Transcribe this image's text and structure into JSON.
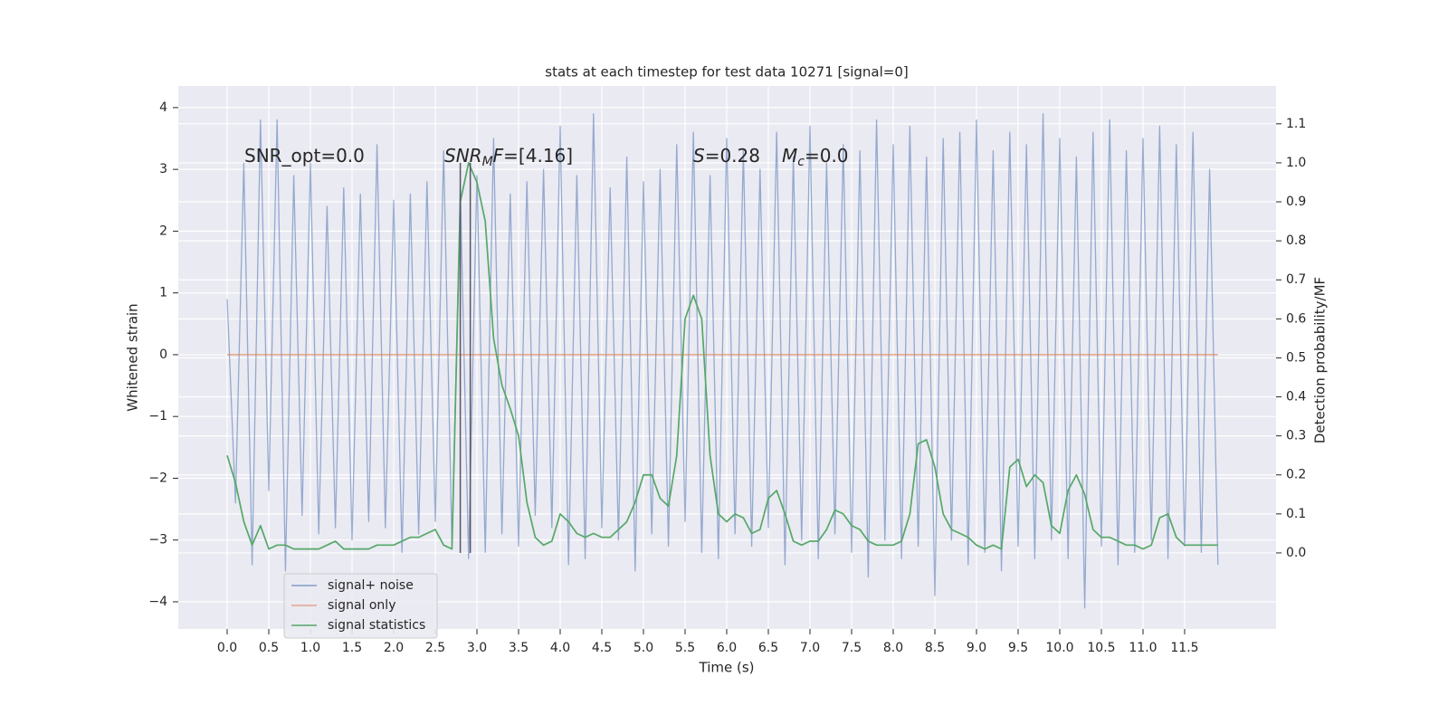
{
  "chart_data": {
    "type": "line",
    "title": "stats at each timestep for test data 10271 [signal=0]",
    "xlabel": "Time (s)",
    "ylabel": "Whitened strain",
    "y2label": "Detection probability/MF",
    "x": [
      0,
      0.1,
      0.2,
      0.3,
      0.4,
      0.5,
      0.6,
      0.7,
      0.8,
      0.9,
      1,
      1.1,
      1.2,
      1.3,
      1.4,
      1.5,
      1.6,
      1.7,
      1.8,
      1.9,
      2,
      2.1,
      2.2,
      2.3,
      2.4,
      2.5,
      2.6,
      2.7,
      2.8,
      2.9,
      3,
      3.1,
      3.2,
      3.3,
      3.4,
      3.5,
      3.6,
      3.7,
      3.8,
      3.9,
      4,
      4.1,
      4.2,
      4.3,
      4.4,
      4.5,
      4.6,
      4.7,
      4.8,
      4.9,
      5,
      5.1,
      5.2,
      5.3,
      5.4,
      5.5,
      5.6,
      5.7,
      5.8,
      5.9,
      6,
      6.1,
      6.2,
      6.3,
      6.4,
      6.5,
      6.6,
      6.7,
      6.8,
      6.9,
      7,
      7.1,
      7.2,
      7.3,
      7.4,
      7.5,
      7.6,
      7.7,
      7.8,
      7.9,
      8,
      8.1,
      8.2,
      8.3,
      8.4,
      8.5,
      8.6,
      8.7,
      8.8,
      8.9,
      9,
      9.1,
      9.2,
      9.3,
      9.4,
      9.5,
      9.6,
      9.7,
      9.8,
      9.9,
      10,
      10.1,
      10.2,
      10.3,
      10.4,
      10.5,
      10.6,
      10.7,
      10.8,
      10.9,
      11,
      11.1,
      11.2,
      11.3,
      11.4,
      11.5,
      11.6,
      11.7,
      11.8,
      11.9
    ],
    "series": [
      {
        "name": "signal+ noise",
        "color": "#4c72b0",
        "values": [
          0.9,
          -2.4,
          3.1,
          -3.4,
          3.8,
          -2.2,
          3.8,
          -3.5,
          2.9,
          -2.6,
          3.1,
          -2.9,
          2.4,
          -2.8,
          2.7,
          -3.0,
          2.6,
          -2.7,
          3.4,
          -2.8,
          2.5,
          -3.2,
          2.6,
          -2.9,
          2.8,
          -2.7,
          3.3,
          -3.1,
          2.7,
          -3.3,
          2.9,
          -3.2,
          3.5,
          -2.9,
          2.6,
          -3.1,
          2.8,
          -2.6,
          3.0,
          -2.8,
          3.7,
          -3.4,
          2.9,
          -3.3,
          3.9,
          -2.8,
          2.7,
          -3.0,
          3.2,
          -3.5,
          2.8,
          -2.9,
          3.0,
          -3.1,
          3.4,
          -2.7,
          3.6,
          -3.2,
          2.9,
          -3.3,
          3.5,
          -2.9,
          3.3,
          -3.1,
          3.0,
          -2.8,
          3.6,
          -3.4,
          3.2,
          -3.0,
          3.7,
          -3.3,
          3.1,
          -2.9,
          3.4,
          -3.2,
          3.3,
          -3.6,
          3.8,
          -3.0,
          3.4,
          -3.3,
          3.7,
          -3.1,
          3.2,
          -3.9,
          3.5,
          -3.0,
          3.6,
          -3.4,
          3.8,
          -3.2,
          3.3,
          -3.5,
          3.6,
          -3.1,
          3.4,
          -3.3,
          3.9,
          -3.0,
          3.5,
          -3.3,
          3.2,
          -4.1,
          3.6,
          -3.1,
          3.8,
          -3.4,
          3.3,
          -3.2,
          3.5,
          -3.0,
          3.7,
          -3.3,
          3.4,
          -3.1,
          3.6,
          -3.2,
          3.0,
          -3.4
        ]
      },
      {
        "name": "signal only",
        "color": "#dd8452",
        "values": [
          0,
          0,
          0,
          0,
          0,
          0,
          0,
          0,
          0,
          0,
          0,
          0,
          0,
          0,
          0,
          0,
          0,
          0,
          0,
          0,
          0,
          0,
          0,
          0,
          0,
          0,
          0,
          0,
          0,
          0,
          0,
          0,
          0,
          0,
          0,
          0,
          0,
          0,
          0,
          0,
          0,
          0,
          0,
          0,
          0,
          0,
          0,
          0,
          0,
          0,
          0,
          0,
          0,
          0,
          0,
          0,
          0,
          0,
          0,
          0,
          0,
          0,
          0,
          0,
          0,
          0,
          0,
          0,
          0,
          0,
          0,
          0,
          0,
          0,
          0,
          0,
          0,
          0,
          0,
          0,
          0,
          0,
          0,
          0,
          0,
          0,
          0,
          0,
          0,
          0,
          0,
          0,
          0,
          0,
          0,
          0,
          0,
          0,
          0,
          0,
          0,
          0,
          0,
          0,
          0,
          0,
          0,
          0,
          0,
          0,
          0,
          0,
          0,
          0,
          0,
          0,
          0,
          0,
          0,
          0
        ]
      },
      {
        "name": "signal statistics",
        "color": "#55a868",
        "axis": "y2",
        "values": [
          0.25,
          0.18,
          0.08,
          0.02,
          0.07,
          0.01,
          0.02,
          0.02,
          0.01,
          0.01,
          0.01,
          0.01,
          0.02,
          0.03,
          0.01,
          0.01,
          0.01,
          0.01,
          0.02,
          0.02,
          0.02,
          0.03,
          0.04,
          0.04,
          0.05,
          0.06,
          0.02,
          0.01,
          0.9,
          1.0,
          0.95,
          0.85,
          0.55,
          0.43,
          0.37,
          0.3,
          0.13,
          0.04,
          0.02,
          0.03,
          0.1,
          0.08,
          0.05,
          0.04,
          0.05,
          0.04,
          0.04,
          0.06,
          0.08,
          0.13,
          0.2,
          0.2,
          0.14,
          0.12,
          0.25,
          0.6,
          0.66,
          0.6,
          0.25,
          0.1,
          0.08,
          0.1,
          0.09,
          0.05,
          0.06,
          0.14,
          0.16,
          0.1,
          0.03,
          0.02,
          0.03,
          0.03,
          0.06,
          0.11,
          0.1,
          0.07,
          0.06,
          0.03,
          0.02,
          0.02,
          0.02,
          0.03,
          0.1,
          0.28,
          0.29,
          0.22,
          0.1,
          0.06,
          0.05,
          0.04,
          0.02,
          0.01,
          0.02,
          0.01,
          0.22,
          0.24,
          0.17,
          0.2,
          0.18,
          0.07,
          0.05,
          0.16,
          0.2,
          0.15,
          0.06,
          0.04,
          0.04,
          0.03,
          0.02,
          0.02,
          0.01,
          0.02,
          0.09,
          0.1,
          0.04,
          0.02,
          0.02,
          0.02,
          0.02,
          0.02
        ]
      }
    ],
    "vlines": [
      2.8,
      2.92
    ],
    "vline_color": "#555566",
    "annotations": [
      {
        "parts": [
          {
            "text": "SNR_opt=0.0",
            "style": "normal"
          }
        ]
      },
      {
        "parts": [
          {
            "text": "SNR",
            "style": "italic"
          },
          {
            "text": "M",
            "style": "sub"
          },
          {
            "text": "F",
            "style": "italic"
          },
          {
            "text": "=[4.16]",
            "style": "normal"
          }
        ]
      },
      {
        "parts": [
          {
            "text": "S",
            "style": "italic"
          },
          {
            "text": "=0.28",
            "style": "normal"
          },
          {
            "text": "M",
            "style": "italic"
          },
          {
            "text": "c",
            "style": "sub"
          },
          {
            "text": "=0.0",
            "style": "normal"
          }
        ]
      }
    ],
    "xlim": [
      -0.587,
      12.598
    ],
    "ylim": [
      -4.44,
      4.35
    ],
    "y2lim": [
      -0.195,
      1.197
    ],
    "xticks": [
      {
        "value": 0,
        "label": "0.0"
      },
      {
        "value": 0.5,
        "label": "0.5"
      },
      {
        "value": 1,
        "label": "1.0"
      },
      {
        "value": 1.5,
        "label": "1.5"
      },
      {
        "value": 2,
        "label": "2.0"
      },
      {
        "value": 2.5,
        "label": "2.5"
      },
      {
        "value": 3,
        "label": "3.0"
      },
      {
        "value": 3.5,
        "label": "3.5"
      },
      {
        "value": 4,
        "label": "4.0"
      },
      {
        "value": 4.5,
        "label": "4.5"
      },
      {
        "value": 5,
        "label": "5.0"
      },
      {
        "value": 5.5,
        "label": "5.5"
      },
      {
        "value": 6,
        "label": "6.0"
      },
      {
        "value": 6.5,
        "label": "6.5"
      },
      {
        "value": 7,
        "label": "7.0"
      },
      {
        "value": 7.5,
        "label": "7.5"
      },
      {
        "value": 8,
        "label": "8.0"
      },
      {
        "value": 8.5,
        "label": "8.5"
      },
      {
        "value": 9,
        "label": "9.0"
      },
      {
        "value": 9.5,
        "label": "9.5"
      },
      {
        "value": 10,
        "label": "10.0"
      },
      {
        "value": 10.5,
        "label": "10.5"
      },
      {
        "value": 11,
        "label": "11.0"
      },
      {
        "value": 11.5,
        "label": "11.5"
      }
    ],
    "yticks": [
      {
        "value": -4,
        "label": "−4"
      },
      {
        "value": -3,
        "label": "−3"
      },
      {
        "value": -2,
        "label": "−2"
      },
      {
        "value": -1,
        "label": "−1"
      },
      0,
      1,
      2,
      3,
      4
    ],
    "y2ticks": [
      {
        "value": 0,
        "label": "0.0"
      },
      {
        "value": 0.1,
        "label": "0.1"
      },
      {
        "value": 0.2,
        "label": "0.2"
      },
      {
        "value": 0.3,
        "label": "0.3"
      },
      {
        "value": 0.4,
        "label": "0.4"
      },
      {
        "value": 0.5,
        "label": "0.5"
      },
      {
        "value": 0.6,
        "label": "0.6"
      },
      {
        "value": 0.7,
        "label": "0.7"
      },
      {
        "value": 0.8,
        "label": "0.8"
      },
      {
        "value": 0.9,
        "label": "0.9"
      },
      {
        "value": 1,
        "label": "1.0"
      },
      {
        "value": 1.1,
        "label": "1.1"
      }
    ],
    "grid": true,
    "legend": "lower left",
    "background": "#eaeaf2"
  }
}
